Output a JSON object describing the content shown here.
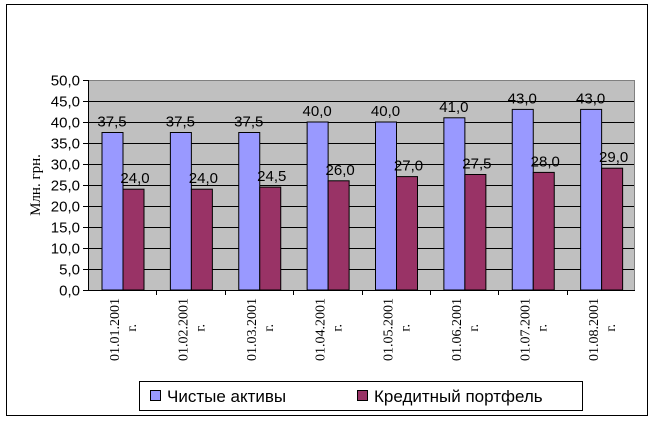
{
  "chart_data": {
    "type": "bar",
    "ylabel": "Млн. грн.",
    "ylim": [
      0,
      50
    ],
    "ystep": 5,
    "y_tick_labels": [
      "0,0",
      "5,0",
      "10,0",
      "15,0",
      "20,0",
      "25,0",
      "30,0",
      "35,0",
      "40,0",
      "45,0",
      "50,0"
    ],
    "grid": true,
    "legend_position": "bottom",
    "categories": [
      [
        "01.01.2001",
        "г."
      ],
      [
        "01.02.2001",
        "г."
      ],
      [
        "01.03.2001",
        "г."
      ],
      [
        "01.04.2001",
        "г."
      ],
      [
        "01.05.2001",
        "г."
      ],
      [
        "01.06.2001",
        "г."
      ],
      [
        "01.07.2001",
        "г."
      ],
      [
        "01.08.2001",
        "г."
      ]
    ],
    "series": [
      {
        "name": "Чистые активы",
        "color": "#9999ff",
        "values": [
          37.5,
          37.5,
          37.5,
          40.0,
          40.0,
          41.0,
          43.0,
          43.0
        ],
        "labels": [
          "37,5",
          "37,5",
          "37,5",
          "40,0",
          "40,0",
          "41,0",
          "43,0",
          "43,0"
        ]
      },
      {
        "name": "Кредитный портфель",
        "color": "#993366",
        "values": [
          24.0,
          24.0,
          24.5,
          26.0,
          27.0,
          27.5,
          28.0,
          29.0
        ],
        "labels": [
          "24,0",
          "24,0",
          "24,5",
          "26,0",
          "27,0",
          "27,5",
          "28,0",
          "29,0"
        ]
      }
    ],
    "plot_background": "#c0c0c0"
  }
}
